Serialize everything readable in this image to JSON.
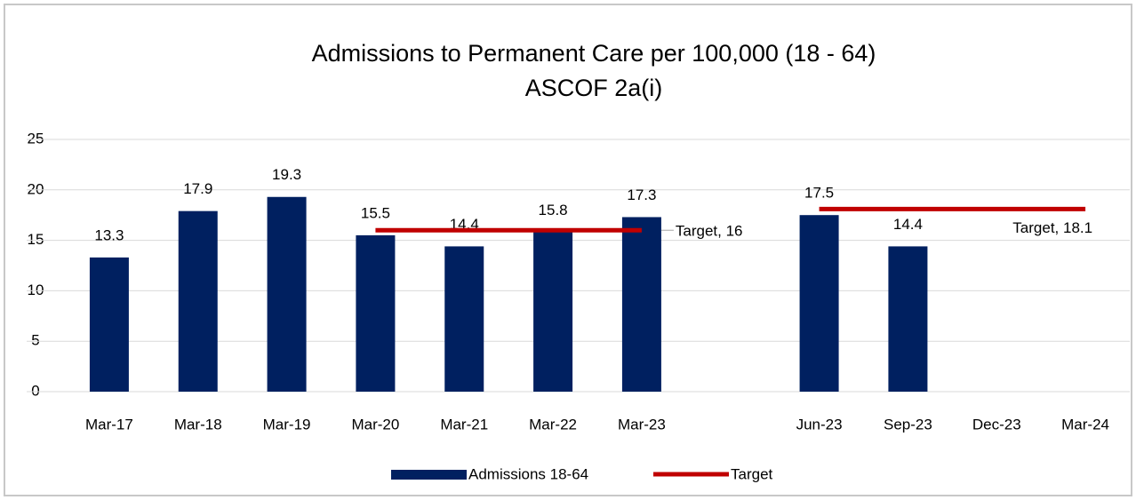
{
  "chart_data": {
    "type": "bar",
    "title": [
      "Admissions to Permanent Care per 100,000  (18 - 64)",
      "ASCOF 2a(i)"
    ],
    "categories": [
      "Mar-17",
      "Mar-18",
      "Mar-19",
      "Mar-20",
      "Mar-21",
      "Mar-22",
      "Mar-23",
      null,
      "Jun-23",
      "Sep-23",
      "Dec-23",
      "Mar-24"
    ],
    "series": [
      {
        "name": "Admissions 18-64",
        "type": "bar",
        "color": "#002060",
        "values": [
          13.3,
          17.9,
          19.3,
          15.5,
          14.4,
          15.8,
          17.3,
          null,
          17.5,
          14.4,
          null,
          null
        ]
      },
      {
        "name": "Target",
        "type": "line",
        "color": "#c00000",
        "values": [
          null,
          null,
          null,
          16,
          16,
          16,
          16,
          null,
          18.1,
          18.1,
          18.1,
          18.1
        ],
        "value_labels": [
          null,
          null,
          null,
          null,
          null,
          null,
          "Target, 16",
          null,
          null,
          null,
          null,
          "Target, 18.1"
        ]
      }
    ],
    "ylim": [
      0,
      25
    ],
    "yticks": [
      0,
      5,
      10,
      15,
      20,
      25
    ],
    "grid": true,
    "legend": "bottom"
  }
}
